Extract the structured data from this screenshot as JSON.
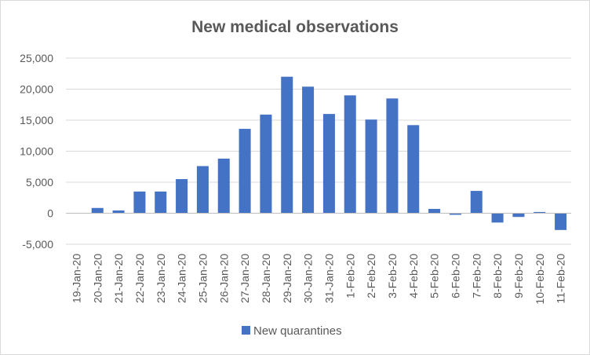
{
  "chart_data": {
    "type": "bar",
    "title": "New medical observations",
    "xlabel": "",
    "ylabel": "",
    "ylim": [
      -5000,
      25000
    ],
    "yticks": [
      -5000,
      0,
      5000,
      10000,
      15000,
      20000,
      25000
    ],
    "ytick_labels": [
      "-5,000",
      "0",
      "5,000",
      "10,000",
      "15,000",
      "20,000",
      "25,000"
    ],
    "grid": true,
    "legend_position": "bottom",
    "categories": [
      "19-Jan-20",
      "20-Jan-20",
      "21-Jan-20",
      "22-Jan-20",
      "23-Jan-20",
      "24-Jan-20",
      "25-Jan-20",
      "26-Jan-20",
      "27-Jan-20",
      "28-Jan-20",
      "29-Jan-20",
      "30-Jan-20",
      "31-Jan-20",
      "1-Feb-20",
      "2-Feb-20",
      "3-Feb-20",
      "4-Feb-20",
      "5-Feb-20",
      "6-Feb-20",
      "7-Feb-20",
      "8-Feb-20",
      "9-Feb-20",
      "10-Feb-20",
      "11-Feb-20"
    ],
    "series": [
      {
        "name": "New quarantines",
        "color": "#4472c4",
        "values": [
          0,
          850,
          450,
          3500,
          3500,
          5500,
          7600,
          8800,
          13600,
          15900,
          22000,
          20400,
          16000,
          19000,
          15100,
          18500,
          14200,
          700,
          -250,
          3600,
          -1500,
          -600,
          200,
          -2700
        ]
      }
    ]
  }
}
